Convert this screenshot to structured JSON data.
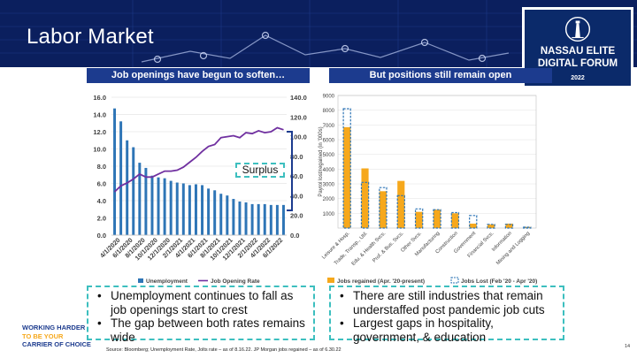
{
  "slide": {
    "title": "Labor Market",
    "page_number": "14",
    "source": "Source: Bloomberg; Unemployment Rate, Jolts rate – as of 8.16.22. JP Morgan jobs regained – as of 6.30.22"
  },
  "brand": {
    "name_line1": "NASSAU ELITE",
    "name_line2": "DIGITAL FORUM",
    "year": "2022",
    "tagline": [
      "WORKING HARDER",
      "TO BE YOUR",
      "CARRIER OF CHOICE"
    ],
    "colors": {
      "navy": "#0b1f5e",
      "accent_blue": "#1c3b8e",
      "teal": "#3dbfbf",
      "orange": "#f6a81c"
    }
  },
  "left_panel": {
    "header": "Job openings have begun to soften…",
    "annotation": "Surplus",
    "bullets": [
      "Unemployment continues to fall as job openings start to crest",
      "The gap between both rates remains wide"
    ]
  },
  "right_panel": {
    "header": "But positions still remain open",
    "bullets": [
      "There are still industries that remain understaffed post pandemic job cuts",
      "Largest gaps in hospitality, government, & education"
    ]
  },
  "chart_data": [
    {
      "type": "bar",
      "categories": [
        "4/1/2020",
        "6/1/2020",
        "8/1/2020",
        "10/1/2020",
        "12/1/2020",
        "2/1/2021",
        "4/1/2021",
        "6/1/2021",
        "8/1/2021",
        "10/1/2021",
        "12/1/2021",
        "2/1/2022",
        "4/1/2022",
        "6/1/2022"
      ],
      "bar_values": [
        14.7,
        13.2,
        11.0,
        10.2,
        8.4,
        7.8,
        6.9,
        6.7,
        6.6,
        6.3,
        6.1,
        6.0,
        5.8,
        5.9,
        5.8,
        5.4,
        5.2,
        4.8,
        4.6,
        4.2,
        3.9,
        3.8,
        3.6,
        3.6,
        3.6,
        3.5,
        3.5,
        3.5
      ],
      "line_values": [
        44,
        50,
        53,
        57,
        62,
        59,
        59,
        62,
        65,
        65,
        66,
        69,
        74,
        79,
        85,
        90,
        92,
        99,
        100,
        101,
        99,
        104,
        103,
        106,
        104,
        105,
        109,
        107
      ],
      "series": [
        {
          "name": "Unemployment",
          "kind": "bar",
          "color": "#2e75b6"
        },
        {
          "name": "Job Opening Rate",
          "kind": "line",
          "color": "#7030a0"
        }
      ],
      "left_axis": {
        "ticks": [
          "0.0",
          "2.0",
          "4.0",
          "6.0",
          "8.0",
          "10.0",
          "12.0",
          "14.0",
          "16.0"
        ],
        "ylim": [
          0,
          16
        ]
      },
      "right_axis": {
        "ticks": [
          "0.0",
          "20.0",
          "40.0",
          "60.0",
          "80.0",
          "100.0",
          "120.0",
          "140.0"
        ],
        "ylim": [
          0,
          140
        ]
      },
      "legend": "bottom",
      "grid": true
    },
    {
      "type": "bar",
      "ylabel": "Payrol lost/regained (in '000s)",
      "categories": [
        "Leisure & Hosp.",
        "Trade, Transp., Util.",
        "Edu. & Health Svcs.",
        "Prof. & Bus. Svcs.",
        "Other Svcs.",
        "Manufacturing",
        "Construction",
        "Government",
        "Financial Svcs.",
        "Information",
        "Mining and Logging"
      ],
      "series": [
        {
          "name": "Jobs regained (Apr. '20-present)",
          "kind": "solid",
          "color": "#f6a81c",
          "values": [
            6850,
            4050,
            2500,
            3200,
            1100,
            1250,
            1000,
            300,
            250,
            300,
            80
          ]
        },
        {
          "name": "Jobs Lost (Feb '20 - Apr '20)",
          "kind": "dashed",
          "color": "#2e75b6",
          "values": [
            8100,
            3100,
            2750,
            2200,
            1300,
            1250,
            1050,
            850,
            250,
            250,
            60
          ]
        }
      ],
      "y_ticks": [
        "1000",
        "2000",
        "3000",
        "4000",
        "5000",
        "6000",
        "7000",
        "8000",
        "9000"
      ],
      "ylim": [
        0,
        9000
      ],
      "legend": "bottom",
      "grid": true
    }
  ]
}
